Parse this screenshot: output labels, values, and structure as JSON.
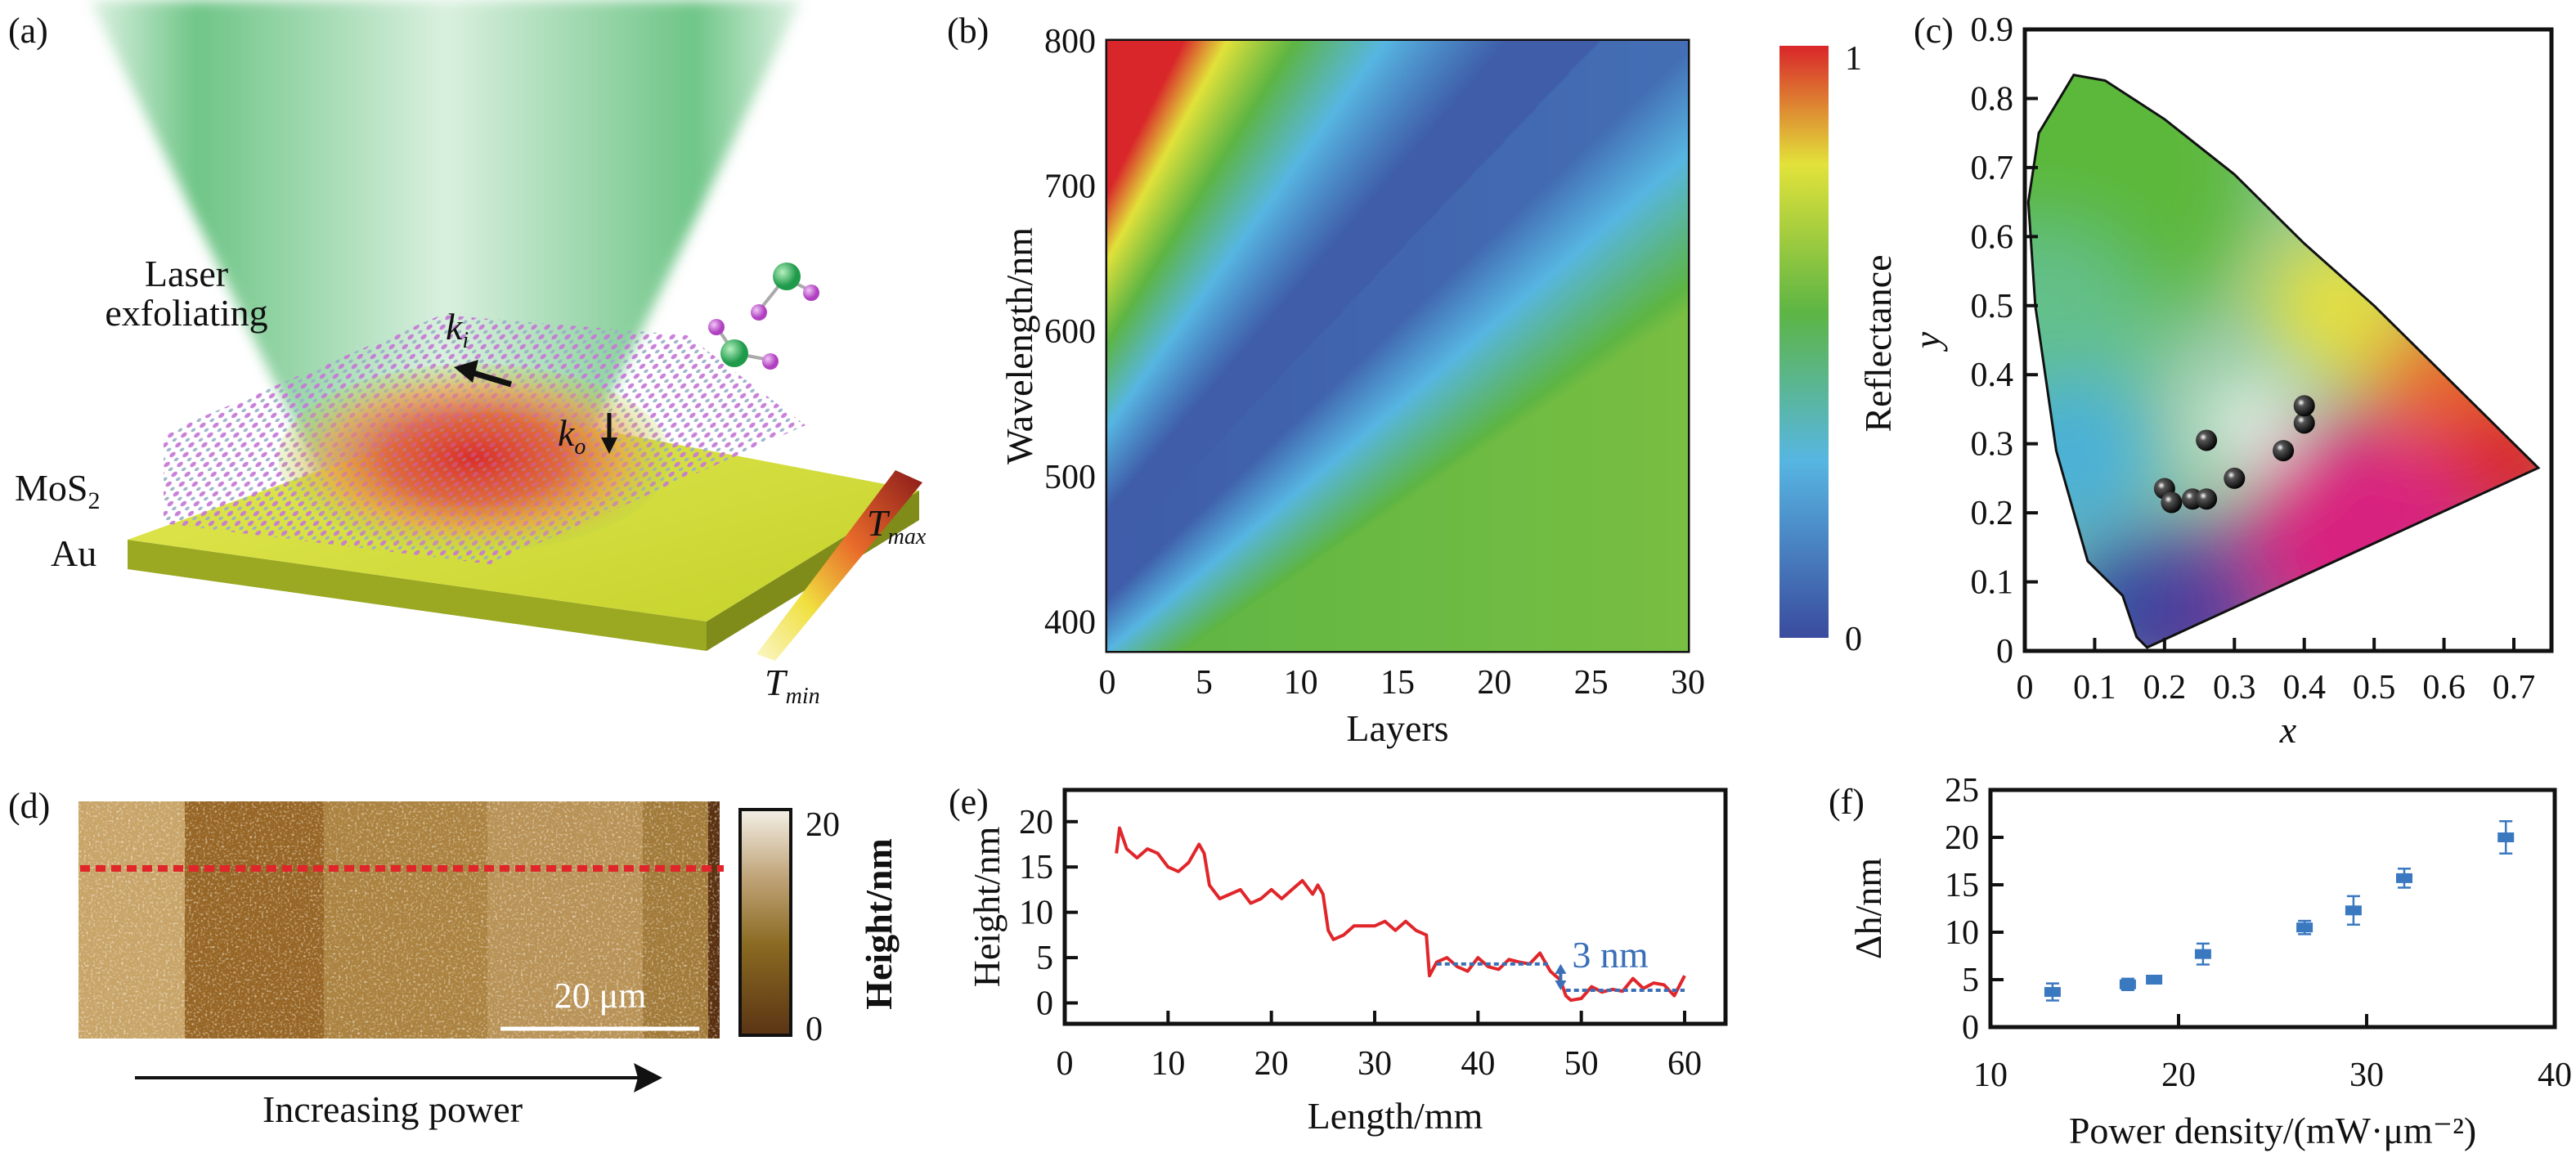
{
  "panels": {
    "a": {
      "label": "(a)",
      "laser_text": [
        "Laser",
        "exfoliating"
      ],
      "mos2": "MoS",
      "mos2_sub": "2",
      "au": "Au",
      "ki": "k",
      "ki_sub": "i",
      "ko": "k",
      "ko_sub": "o",
      "tmax": "T",
      "tmax_sub": "max",
      "tmin": "T",
      "tmin_sub": "min",
      "colors": {
        "beam": "#5fbf7a",
        "substrate": "#d6df3a",
        "atoms": "#c679d6",
        "hot": "#d9262a"
      }
    },
    "b": {
      "label": "(b)"
    },
    "c": {
      "label": "(c)"
    },
    "d": {
      "label": "(d)",
      "scale_bar": "20 μm",
      "arrow_text": "Increasing power",
      "colorbar_label": "Height/nm",
      "colorbar_ticks": [
        "0",
        "20"
      ],
      "line_color": "#e0262a"
    },
    "e": {
      "label": "(e)"
    },
    "f": {
      "label": "(f)"
    }
  },
  "chart_data": [
    {
      "panel": "b",
      "type": "heatmap",
      "xlabel": "Layers",
      "ylabel": "Wavelength/nm",
      "xlim": [
        0,
        30
      ],
      "ylim": [
        380,
        800
      ],
      "xticks": [
        "0",
        "5",
        "10",
        "15",
        "20",
        "25",
        "30"
      ],
      "yticks": [
        "400",
        "500",
        "600",
        "700",
        "800"
      ],
      "colorbar": {
        "label": "Reflectance",
        "range": [
          0,
          1
        ],
        "ticks": [
          "0",
          "1"
        ],
        "colormap": [
          "#3a4b9e",
          "#57b6e2",
          "#5db544",
          "#e2e23a",
          "#d9262a"
        ]
      },
      "annotation": {
        "style": "white dashed line",
        "from": [
          1.8,
          440
        ],
        "to": [
          23.5,
          785
        ]
      },
      "description_of_minimum": "low-reflectance band rising from ~470 nm at 2 layers to ~800 nm at ~25 layers"
    },
    {
      "panel": "c",
      "type": "scatter",
      "xlabel": "x",
      "ylabel": "y",
      "xlim": [
        0,
        0.75
      ],
      "ylim": [
        0,
        0.9
      ],
      "xticks": [
        "0",
        "0.1",
        "0.2",
        "0.3",
        "0.4",
        "0.5",
        "0.6",
        "0.7"
      ],
      "yticks": [
        "0",
        "0.1",
        "0.2",
        "0.3",
        "0.4",
        "0.5",
        "0.6",
        "0.7",
        "0.8",
        "0.9"
      ],
      "background": "CIE 1931 chromaticity diagram",
      "points": [
        [
          0.2,
          0.235
        ],
        [
          0.21,
          0.215
        ],
        [
          0.24,
          0.22
        ],
        [
          0.26,
          0.22
        ],
        [
          0.26,
          0.305
        ],
        [
          0.3,
          0.25
        ],
        [
          0.37,
          0.29
        ],
        [
          0.4,
          0.33
        ],
        [
          0.4,
          0.355
        ]
      ],
      "marker_color": "#111111"
    },
    {
      "panel": "e",
      "type": "line",
      "xlabel": "Length/mm",
      "ylabel": "Height/nm",
      "xlim": [
        0,
        64
      ],
      "ylim": [
        -2.3,
        23.5
      ],
      "xticks": [
        "0",
        "10",
        "20",
        "30",
        "40",
        "50",
        "60"
      ],
      "yticks": [
        "0",
        "5",
        "10",
        "15",
        "20"
      ],
      "line_color": "#e0262a",
      "x": [
        5,
        5.3,
        6,
        7,
        8,
        9,
        10,
        11,
        12,
        13,
        13.5,
        14,
        15,
        16,
        17,
        18,
        19,
        20,
        21,
        22,
        23,
        24,
        24.5,
        25,
        25.5,
        26,
        27,
        28,
        29,
        30,
        31,
        32,
        33,
        34,
        35,
        35.3,
        36,
        37,
        38,
        39,
        40,
        41,
        42,
        43,
        44,
        45,
        46,
        47,
        48,
        48.5,
        49,
        50,
        51,
        52,
        53,
        54,
        55,
        56,
        57,
        58,
        59,
        60
      ],
      "y": [
        16.5,
        19.3,
        17,
        16,
        17,
        16.5,
        15,
        14.5,
        15.5,
        17.5,
        16.5,
        13,
        11.5,
        12,
        12.5,
        11,
        11.5,
        12.5,
        11.5,
        12.5,
        13.5,
        12,
        13,
        12,
        8,
        7,
        7.5,
        8.5,
        8.5,
        8.5,
        9,
        8,
        9,
        8,
        7.5,
        3,
        4.5,
        5,
        4,
        3.5,
        5,
        4,
        3.7,
        4.8,
        4.5,
        4.3,
        5.5,
        3.5,
        2.5,
        0.8,
        0.3,
        0.5,
        1.8,
        1.2,
        1.5,
        1.3,
        2.7,
        1.6,
        2.2,
        2,
        0.8,
        3
      ],
      "reference_levels": [
        {
          "y": 4.3,
          "x": [
            36,
            47
          ]
        },
        {
          "y": 1.4,
          "x": [
            48.5,
            60
          ]
        }
      ],
      "annotation": {
        "text": "3 nm",
        "x": 48,
        "color": "#3a6fb8"
      }
    },
    {
      "panel": "f",
      "type": "scatter",
      "xlabel": "Power density/(mW·μm⁻²)",
      "ylabel": "Δh/nm",
      "xlim": [
        10,
        40
      ],
      "ylim": [
        0,
        25
      ],
      "xticks": [
        "10",
        "20",
        "30",
        "40"
      ],
      "yticks": [
        "0",
        "5",
        "10",
        "15",
        "20",
        "25"
      ],
      "marker_color": "#3a78c0",
      "x": [
        13.3,
        17.3,
        18.7,
        21.3,
        26.7,
        29.3,
        32.0,
        37.4
      ],
      "y": [
        3.7,
        4.5,
        5.0,
        7.7,
        10.5,
        12.3,
        15.7,
        20.0
      ],
      "error": [
        0.9,
        0.6,
        0.4,
        1.1,
        0.7,
        1.5,
        1.0,
        1.7
      ]
    }
  ]
}
